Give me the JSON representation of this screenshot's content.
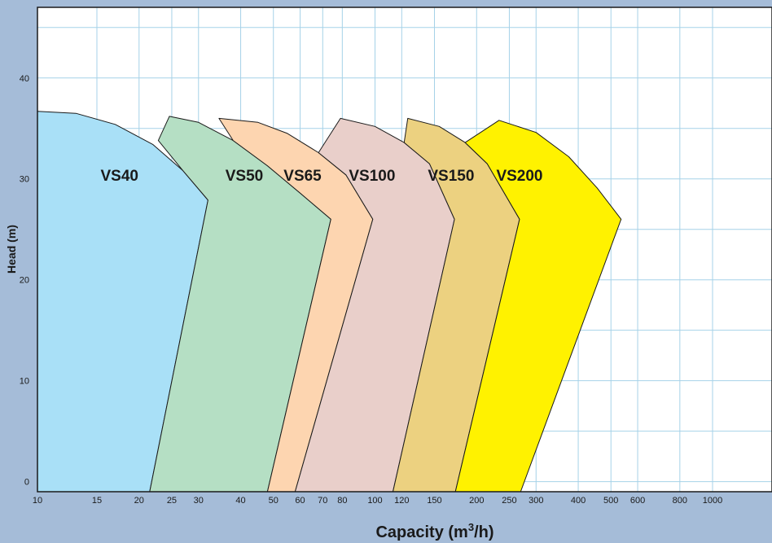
{
  "chart_data": {
    "type": "area",
    "title": "",
    "xlabel_main": "Capacity (m",
    "xlabel_sup": "3",
    "xlabel_tail": "/h)",
    "ylabel": "Head (m)",
    "x_scale": "log",
    "xlim": [
      10,
      1500
    ],
    "ylim": [
      -1,
      47
    ],
    "x_ticks": [
      10,
      15,
      20,
      25,
      30,
      40,
      50,
      60,
      70,
      80,
      100,
      120,
      150,
      200,
      250,
      300,
      400,
      500,
      600,
      800,
      1000
    ],
    "y_ticks": [
      0,
      10,
      20,
      30,
      40
    ],
    "grid": true,
    "colors": {
      "VS40": "#a9e0f7",
      "VS50": "#b5dfc4",
      "VS65": "#fdd5b0",
      "VS100": "#e9cfca",
      "VS150": "#ecd180",
      "VS200": "#fff200",
      "grid": "#a6d2e8",
      "frame_bg": "#a5bcd8"
    },
    "series": [
      {
        "name": "VS40",
        "label_at": [
          17.5,
          30.4
        ],
        "outline": [
          [
            10,
            36.7
          ],
          [
            13,
            36.5
          ],
          [
            17,
            35.4
          ],
          [
            22,
            33.4
          ],
          [
            27,
            30.8
          ],
          [
            32,
            27.9
          ],
          [
            21.5,
            -1
          ],
          [
            10,
            -1
          ]
        ]
      },
      {
        "name": "VS50",
        "label_at": [
          41,
          30.4
        ],
        "outline": [
          [
            22.8,
            33.8
          ],
          [
            24.6,
            36.2
          ],
          [
            30,
            35.6
          ],
          [
            38,
            33.8
          ],
          [
            48,
            31.3
          ],
          [
            60,
            28.6
          ],
          [
            74,
            26.0
          ],
          [
            48,
            -1
          ],
          [
            21.5,
            -1
          ],
          [
            32,
            27.9
          ],
          [
            27,
            30.8
          ],
          [
            22.8,
            33.8
          ]
        ]
      },
      {
        "name": "VS65",
        "label_at": [
          61,
          30.4
        ],
        "outline": [
          [
            48,
            31.3
          ],
          [
            38,
            33.8
          ],
          [
            34.5,
            36.0
          ],
          [
            45,
            35.6
          ],
          [
            55,
            34.5
          ],
          [
            68,
            32.6
          ],
          [
            82,
            30.4
          ],
          [
            98.5,
            26.0
          ],
          [
            58,
            -1
          ],
          [
            48,
            -1
          ],
          [
            74,
            26.0
          ],
          [
            60,
            28.6
          ],
          [
            48,
            31.3
          ]
        ]
      },
      {
        "name": "VS100",
        "label_at": [
          98,
          30.4
        ],
        "outline": [
          [
            82,
            30.4
          ],
          [
            68,
            32.6
          ],
          [
            79,
            36.0
          ],
          [
            100,
            35.2
          ],
          [
            122,
            33.6
          ],
          [
            145,
            31.5
          ],
          [
            172,
            26.0
          ],
          [
            113,
            -1
          ],
          [
            58,
            -1
          ],
          [
            98.5,
            26.0
          ],
          [
            82,
            30.4
          ]
        ]
      },
      {
        "name": "VS150",
        "label_at": [
          168,
          30.4
        ],
        "outline": [
          [
            145,
            31.5
          ],
          [
            122,
            33.6
          ],
          [
            125,
            36.0
          ],
          [
            155,
            35.2
          ],
          [
            185,
            33.6
          ],
          [
            215,
            31.5
          ],
          [
            268,
            26.0
          ],
          [
            173,
            -1
          ],
          [
            113,
            -1
          ],
          [
            172,
            26.0
          ],
          [
            145,
            31.5
          ]
        ]
      },
      {
        "name": "VS200",
        "label_at": [
          268,
          30.4
        ],
        "outline": [
          [
            215,
            31.5
          ],
          [
            185,
            33.6
          ],
          [
            233,
            35.8
          ],
          [
            300,
            34.6
          ],
          [
            375,
            32.2
          ],
          [
            455,
            29.1
          ],
          [
            536,
            26.0
          ],
          [
            270,
            -1
          ],
          [
            173,
            -1
          ],
          [
            268,
            26.0
          ],
          [
            215,
            31.5
          ]
        ]
      }
    ]
  }
}
